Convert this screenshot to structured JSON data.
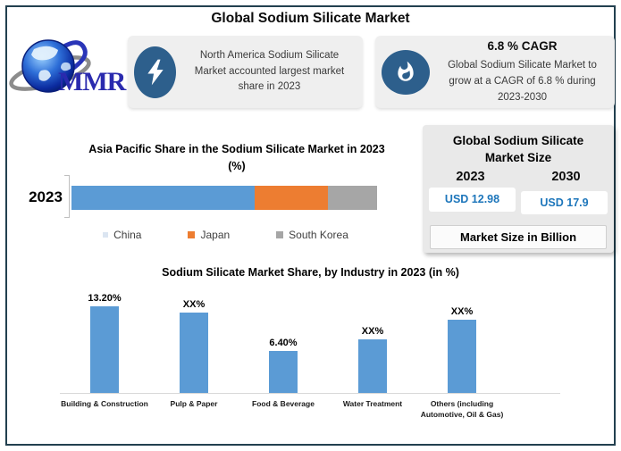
{
  "page": {
    "title": "Global Sodium Silicate Market"
  },
  "logo": {
    "text": "MMR"
  },
  "callouts": [
    {
      "icon": "lightning-icon",
      "text": "North America Sodium Silicate Market accounted largest market share in 2023"
    },
    {
      "icon": "flame-icon",
      "title": "6.8 % CAGR",
      "text": "Global Sodium Silicate Market to grow at a CAGR of 6.8 % during 2023-2030"
    }
  ],
  "market_size_panel": {
    "title_line1": "Global Sodium Silicate",
    "title_line2": "Market Size",
    "years": [
      "2023",
      "2030"
    ],
    "values": [
      "USD 12.98",
      "USD 17.9"
    ],
    "footer": "Market Size in Billion"
  },
  "chart_data": [
    {
      "type": "bar",
      "subtype": "horizontal-stacked",
      "title": "Asia Pacific Share in the Sodium Silicate Market in 2023 (%)",
      "title_line1": "Asia Pacific Share in the Sodium Silicate Market in 2023",
      "title_line2": "(%)",
      "categories": [
        "2023"
      ],
      "series": [
        {
          "name": "China",
          "value": 60,
          "color": "#5b9bd5",
          "legend_color": "#dbe5f1"
        },
        {
          "name": "Japan",
          "value": 24,
          "color": "#ed7d31",
          "legend_color": "#ed7d31"
        },
        {
          "name": "South Korea",
          "value": 16,
          "color": "#a6a6a6",
          "legend_color": "#a6a6a6"
        }
      ],
      "xlim": [
        0,
        100
      ],
      "legend_position": "bottom",
      "grid": false
    },
    {
      "type": "bar",
      "title": "Sodium Silicate Market Share, by Industry in 2023 (in %)",
      "categories": [
        "Building & Construction",
        "Pulp & Paper",
        "Food & Beverage",
        "Water Treatment",
        "Others (including Automotive, Oil & Gas)"
      ],
      "labels": [
        "13.20%",
        "XX%",
        "6.40%",
        "XX%",
        "XX%"
      ],
      "values": [
        13.2,
        12.3,
        6.4,
        8.1,
        11.2
      ],
      "bar_color": "#5b9bd5",
      "ylim": [
        0,
        14
      ],
      "grid": false,
      "legend_position": "none"
    }
  ],
  "colors": {
    "frame_border": "#22404f",
    "callout_bg": "#efefef",
    "icon_bg": "#2d5f8c",
    "panel_bg": "#e9e9e9",
    "value_text": "#1d76bb",
    "bar_blue": "#5b9bd5"
  }
}
